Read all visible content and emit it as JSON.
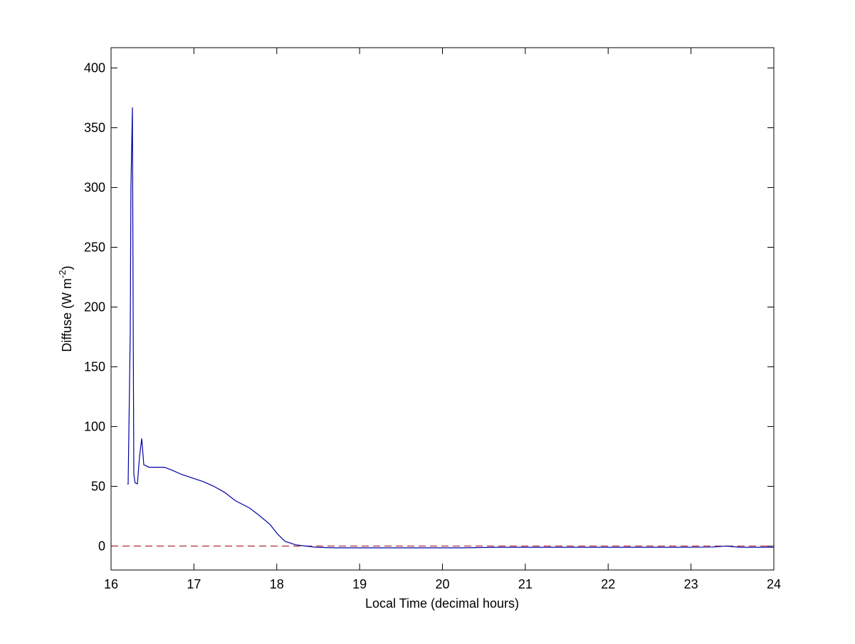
{
  "chart_data": {
    "type": "line",
    "title": "",
    "xlabel": "Local Time (decimal hours)",
    "ylabel_main": "Diffuse (W m",
    "ylabel_sup": "-2",
    "ylabel_close": ")",
    "xlim": [
      16,
      24
    ],
    "ylim": [
      -20,
      417
    ],
    "xticks": [
      16,
      17,
      18,
      19,
      20,
      21,
      22,
      23,
      24
    ],
    "yticks": [
      0,
      50,
      100,
      150,
      200,
      250,
      300,
      350,
      400
    ],
    "grid": false,
    "colors": {
      "series": "#0000a8",
      "reference": "#b03030"
    },
    "reference_line": {
      "y": 0,
      "style": "dashed"
    },
    "series": [
      {
        "x": [
          16.198,
          16.206,
          16.232,
          16.24,
          16.258,
          16.266,
          16.275,
          16.29,
          16.318,
          16.344,
          16.37,
          16.395,
          16.46,
          16.64,
          16.72,
          16.85,
          16.98,
          17.11,
          17.24,
          17.37,
          17.5,
          17.67,
          17.8,
          17.92,
          18.01,
          18.1,
          18.23,
          18.35,
          18.48,
          18.7,
          20.24,
          20.67,
          22.82,
          23.25,
          23.42,
          23.6,
          24.0
        ],
        "y": [
          52,
          52,
          180,
          300,
          367,
          200,
          60,
          53,
          52,
          75,
          90,
          68,
          66,
          66,
          64,
          60,
          57,
          54,
          50,
          45,
          38,
          32,
          25,
          18,
          10,
          4,
          1,
          0,
          -1,
          -1.5,
          -1.5,
          -1,
          -1,
          -0.8,
          0,
          -1,
          -1
        ]
      }
    ]
  }
}
